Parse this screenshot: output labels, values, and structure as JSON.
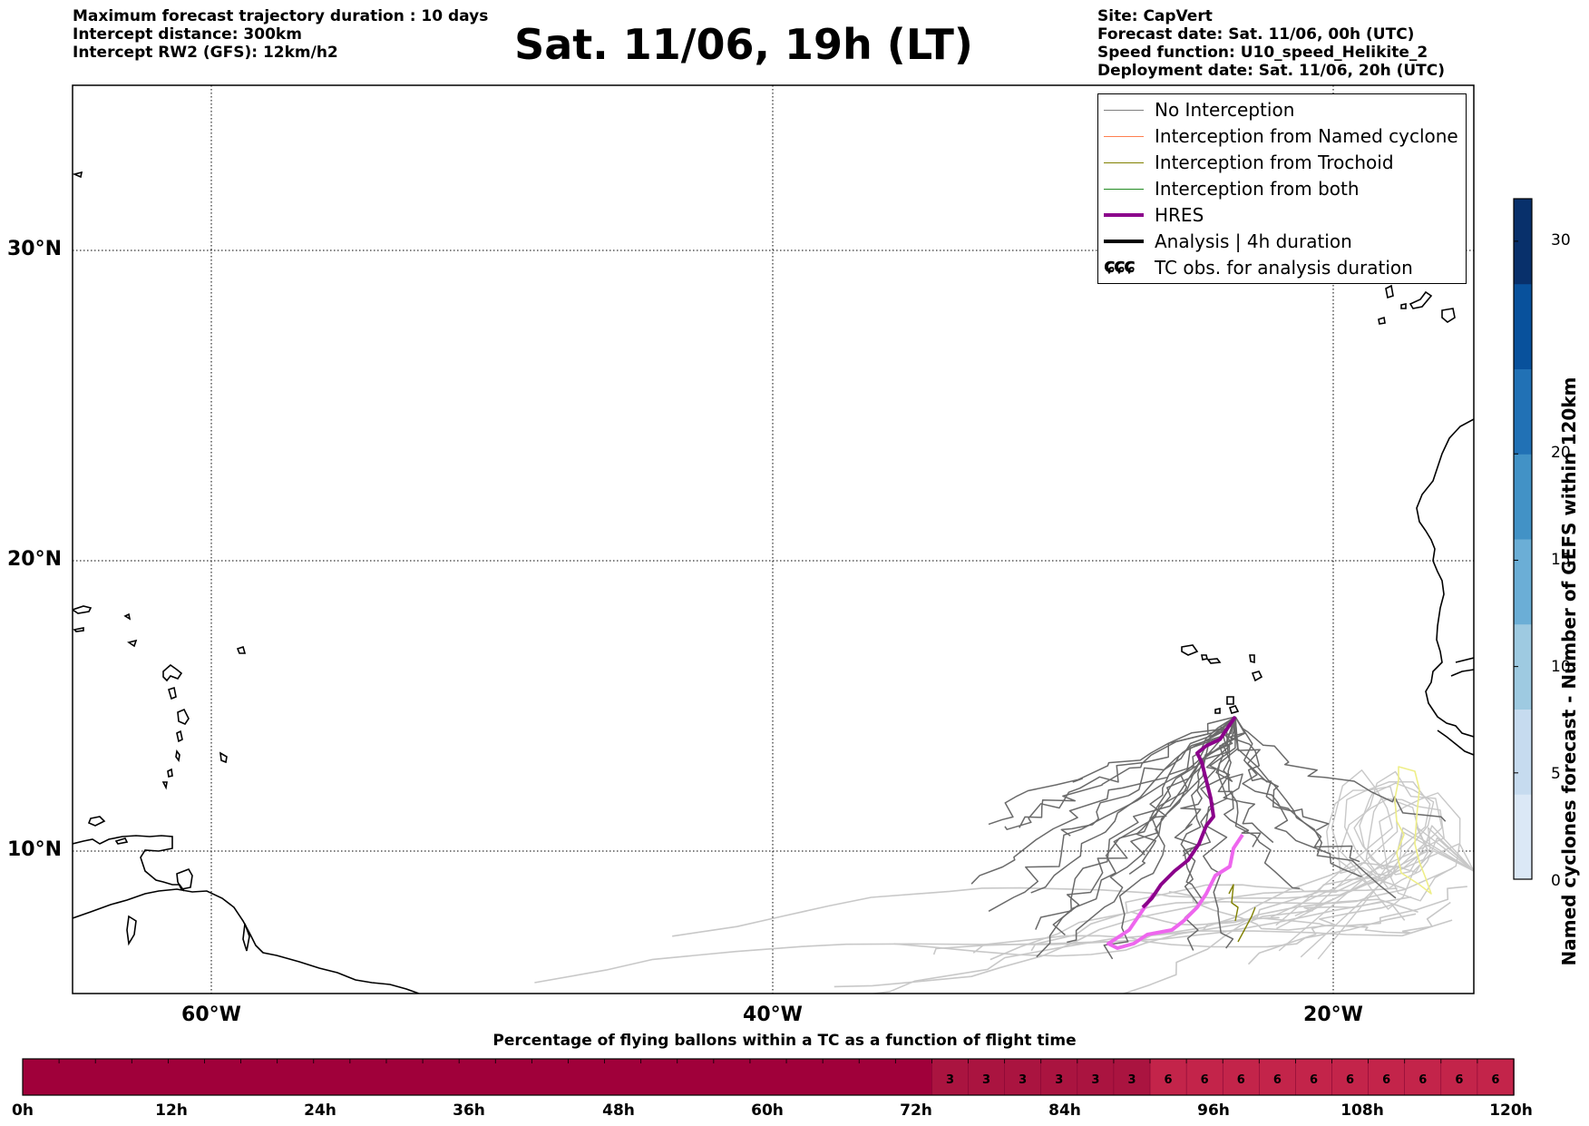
{
  "header_left": [
    "Maximum forecast trajectory duration : 10 days",
    "Intercept distance: 300km",
    "Intercept RW2 (GFS):  12km/h2"
  ],
  "title": "Sat. 11/06, 19h (LT)",
  "header_right": [
    "Site: CapVert",
    "Forecast date: Sat. 11/06, 00h (UTC)",
    "Speed function: U10_speed_Helikite_2",
    "Deployment date: Sat. 11/06, 20h (UTC)"
  ],
  "map": {
    "lat_labels": [
      "30°N",
      "20°N",
      "10°N"
    ],
    "lon_labels": [
      "60°W",
      "40°W",
      "20°W"
    ],
    "extent": {
      "lon": [
        -65,
        -15
      ],
      "lat": [
        5.1,
        34.4
      ]
    },
    "grid": true
  },
  "legend": {
    "items": [
      {
        "label": "No Interception",
        "color": "#808080",
        "style": "thin"
      },
      {
        "label": "Interception from Named cyclone",
        "color": "#ff7f50",
        "style": "thin"
      },
      {
        "label": "Interception from Trochoid",
        "color": "#808000",
        "style": "thin"
      },
      {
        "label": "Interception from both",
        "color": "#228b22",
        "style": "thin"
      },
      {
        "label": "HRES",
        "color": "#8b008b",
        "style": "thick"
      },
      {
        "label": "Analysis | 4h duration",
        "color": "#000000",
        "style": "thick"
      },
      {
        "label": "TC obs. for analysis duration",
        "color": "#000000",
        "style": "symbol",
        "symbol": "ɕɕɕ"
      }
    ]
  },
  "colorbar": {
    "label": "Named cyclones forecast - Number of GEFS within 120km",
    "ticks": [
      "30",
      "20",
      "15",
      "10",
      "5",
      "0"
    ],
    "tick_values": [
      30,
      20,
      15,
      10,
      5,
      0
    ],
    "max": 32,
    "colors": [
      "#dbe8f6",
      "#c6dbef",
      "#9ecae1",
      "#6baed6",
      "#4292c6",
      "#2171b5",
      "#08519c",
      "#08306b"
    ]
  },
  "flight_bar": {
    "title": "Percentage of flying ballons within a TC as a function of flight time",
    "time_labels": [
      "0h",
      "12h",
      "24h",
      "36h",
      "48h",
      "60h",
      "72h",
      "84h",
      "96h",
      "108h",
      "120h"
    ],
    "segment_values": [
      "",
      "",
      "",
      "",
      "",
      "",
      "",
      "",
      "",
      "",
      "",
      "",
      "",
      "",
      "",
      "",
      "",
      "",
      "",
      "",
      "",
      "",
      "",
      "",
      "",
      "3",
      "3",
      "3",
      "3",
      "3",
      "3",
      "6",
      "6",
      "6",
      "6",
      "6",
      "6",
      "6",
      "6",
      "6",
      "6"
    ],
    "colors": {
      "0": "#a0003a",
      "3": "#aa1440",
      "6": "#c3244a"
    }
  },
  "tracks": {
    "hres_color": "#8b008b",
    "analysis_color": "#ee66ee",
    "gefs_color": "#6a6a6a",
    "other_color": "#c8c8c8",
    "trochoid_color": "#808000",
    "cyclone_color": "#eeee88"
  }
}
